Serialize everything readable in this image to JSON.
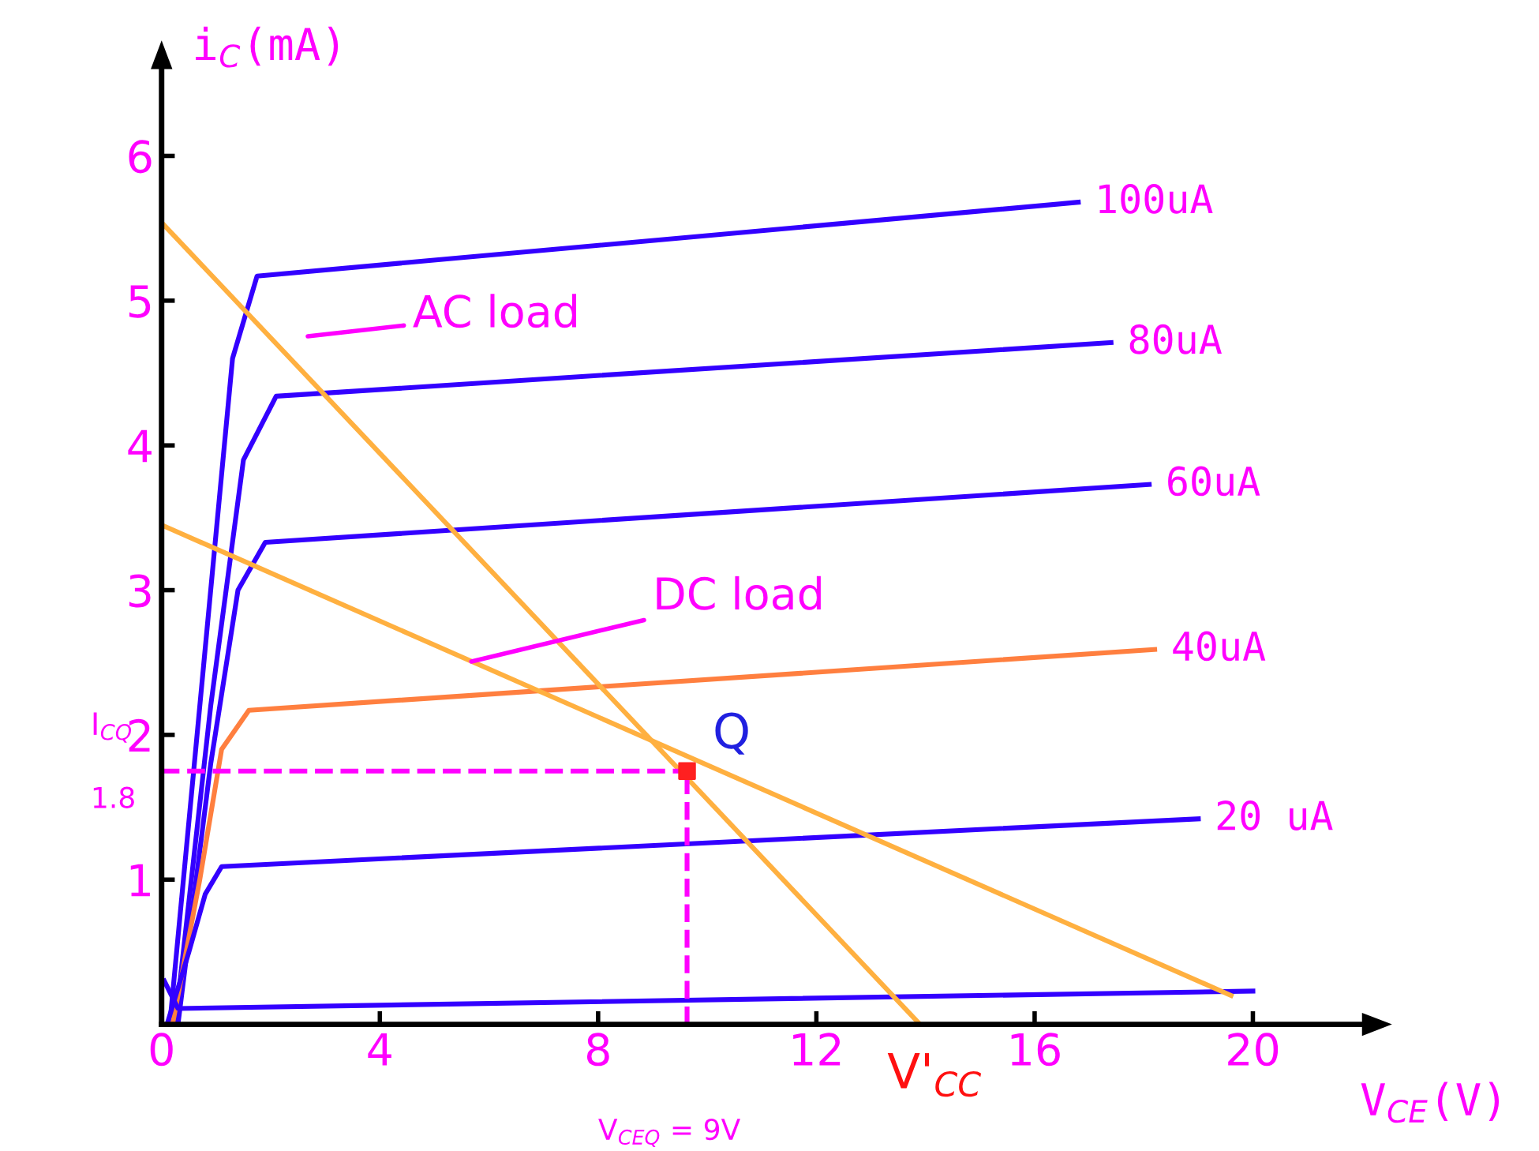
{
  "chart_data": {
    "type": "line",
    "xlabel": "V$_{CE}$(V)",
    "ylabel": "i$_{C}$(mA)",
    "xlim": [
      0,
      22
    ],
    "ylim": [
      0,
      6.6
    ],
    "xticks": [
      0,
      4,
      8,
      12,
      16,
      20
    ],
    "yticks": [
      1,
      2,
      3,
      4,
      5,
      6
    ],
    "grid": false,
    "legend": false,
    "marker": "none",
    "series": [
      {
        "name": "100uA",
        "color": "#3300ff",
        "x": [
          0.15,
          0.8,
          1.3,
          1.75,
          16.8
        ],
        "values": [
          0.0,
          2.6,
          4.6,
          5.17,
          5.68
        ]
      },
      {
        "name": "80uA",
        "color": "#3300ff",
        "x": [
          0.25,
          0.9,
          1.5,
          2.1,
          17.4
        ],
        "values": [
          0.0,
          2.2,
          3.9,
          4.34,
          4.71
        ]
      },
      {
        "name": "60uA",
        "color": "#3300ff",
        "x": [
          0.3,
          0.9,
          1.4,
          1.9,
          18.1
        ],
        "values": [
          0.0,
          1.8,
          3.0,
          3.33,
          3.73
        ]
      },
      {
        "name": "40uA",
        "color": "#ff7f3f",
        "x": [
          0.2,
          0.7,
          1.1,
          1.6,
          18.2
        ],
        "values": [
          0.0,
          1.0,
          1.9,
          2.17,
          2.59
        ]
      },
      {
        "name": "20 uA",
        "color": "#3300ff",
        "x": [
          0.1,
          0.5,
          0.8,
          1.1,
          19.0
        ],
        "values": [
          0.0,
          0.5,
          0.9,
          1.09,
          1.42
        ]
      },
      {
        "color": "#3300ff",
        "x": [
          0.05,
          0.3,
          20.0
        ],
        "values": [
          0.3,
          0.11,
          0.23
        ]
      },
      {
        "color": "#ffb040",
        "x": [
          0,
          13.9
        ],
        "values": [
          5.54,
          0
        ]
      },
      {
        "color": "#ffb040",
        "x": [
          0,
          19.6
        ],
        "values": [
          3.45,
          0.2
        ]
      },
      {
        "color": "#ff00ff",
        "line_style": "dashed",
        "x": [
          0,
          9.63
        ],
        "values": [
          1.75,
          1.75
        ]
      },
      {
        "color": "#ff00ff",
        "line_style": "dashed",
        "x": [
          9.63,
          9.63
        ],
        "values": [
          0,
          1.75
        ]
      },
      {
        "type": "scatter",
        "color": "#ff2020",
        "marker": "square",
        "x": [
          9.63
        ],
        "values": [
          1.75
        ]
      }
    ],
    "annotations": [
      "AC load",
      {
        "text": "DC load",
        "x": 5.6,
        "y": 2.5
      },
      {
        "text": "Q",
        "x": 9.63,
        "y": 1.75
      },
      {
        "text": "V'$_{CC}$",
        "x": 13.9,
        "y": 0
      },
      "I$_{CQ}$",
      {
        "text": "1.8",
        "x": 0,
        "y": 1.75
      },
      "V$_{CEQ}$ = 9V"
    ]
  }
}
